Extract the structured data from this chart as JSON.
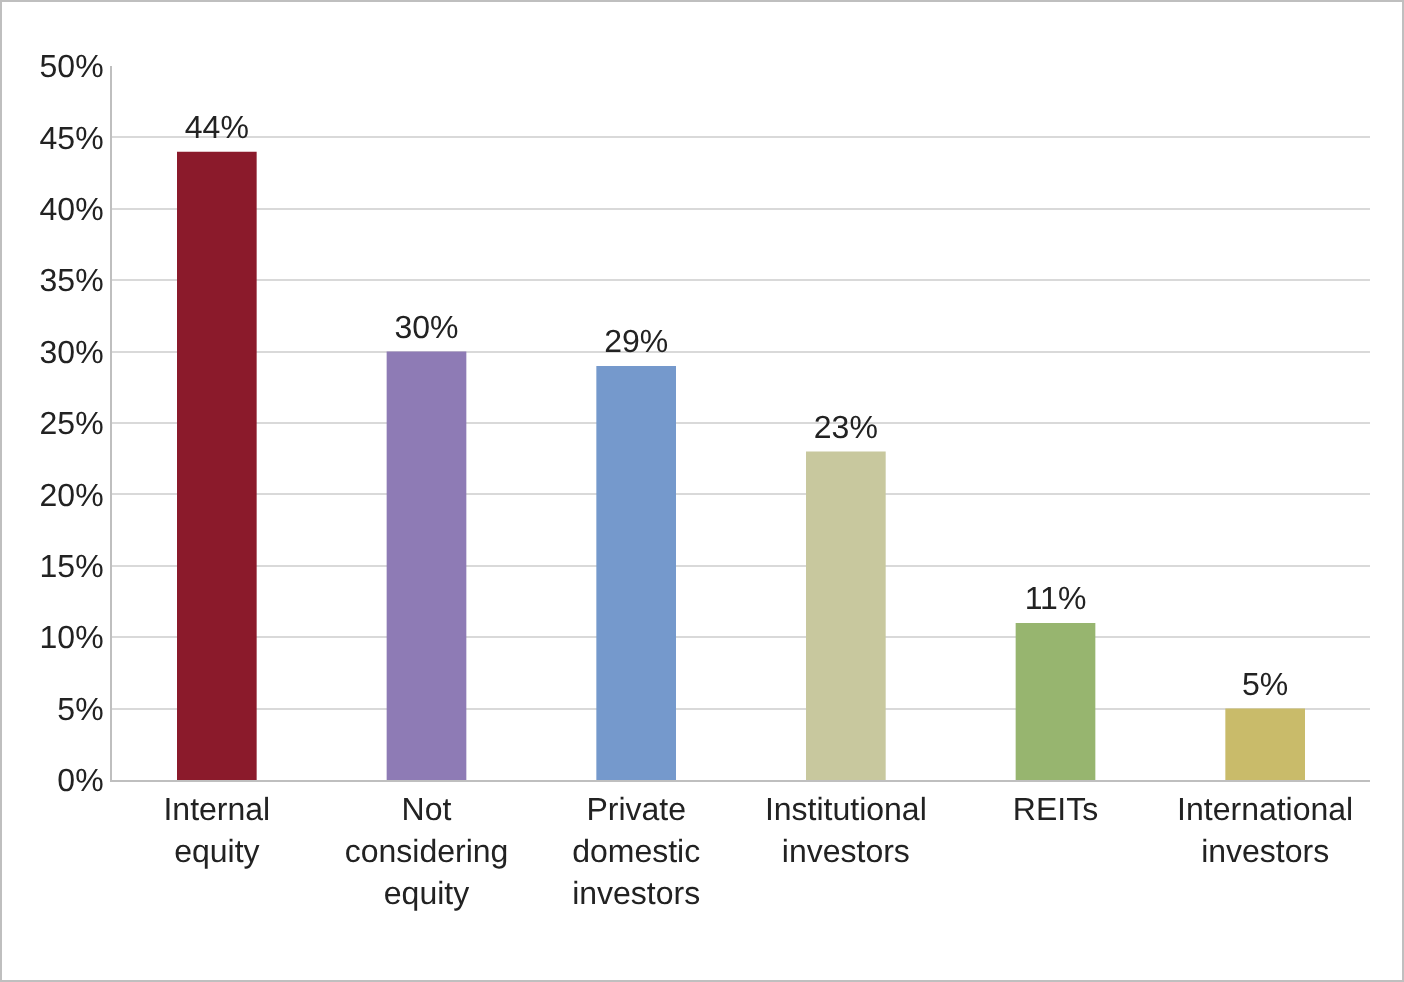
{
  "chart_data": {
    "type": "bar",
    "categories": [
      "Internal equity",
      "Not considering equity",
      "Private domestic investors",
      "Institutional investors",
      "REITs",
      "International investors"
    ],
    "values": [
      44,
      30,
      29,
      23,
      11,
      5
    ],
    "colors": [
      "#8b1a2b",
      "#8e7bb5",
      "#7599cc",
      "#c8c89e",
      "#97b56f",
      "#c9bb6a"
    ],
    "value_labels": [
      "44%",
      "30%",
      "29%",
      "23%",
      "11%",
      "5%"
    ],
    "ylim": [
      0,
      50
    ],
    "yticks": [
      {
        "value": 0,
        "label": "0%"
      },
      {
        "value": 5,
        "label": "5%"
      },
      {
        "value": 10,
        "label": "10%"
      },
      {
        "value": 15,
        "label": "15%"
      },
      {
        "value": 20,
        "label": "20%"
      },
      {
        "value": 25,
        "label": "25%"
      },
      {
        "value": 30,
        "label": "30%"
      },
      {
        "value": 35,
        "label": "35%"
      },
      {
        "value": 40,
        "label": "40%"
      },
      {
        "value": 45,
        "label": "45%"
      },
      {
        "value": 50,
        "label": "50%"
      }
    ],
    "grid": "y"
  }
}
